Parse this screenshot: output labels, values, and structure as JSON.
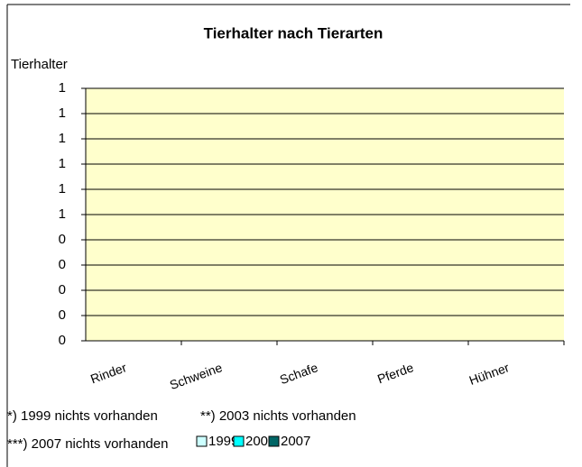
{
  "chart_data": {
    "type": "bar",
    "title": "Tierhalter nach Tierarten",
    "y_label": "Tierhalter",
    "categories": [
      "Rinder",
      "Schweine",
      "Schafe",
      "Pferde",
      "Hühner"
    ],
    "series": [
      {
        "name": "1999",
        "color": "#ccffff",
        "values": [
          0,
          0,
          0,
          0,
          0
        ]
      },
      {
        "name": "2003",
        "color": "#00ffff",
        "values": [
          0,
          0,
          0,
          0,
          0
        ]
      },
      {
        "name": "2007",
        "color": "#006666",
        "values": [
          0,
          0,
          0,
          0,
          0
        ]
      }
    ],
    "ylim": [
      0,
      1
    ],
    "yticks": [
      0,
      {
        "value": 0.1,
        "label": "0"
      },
      {
        "value": 0.2,
        "label": "0"
      },
      {
        "value": 0.3,
        "label": "0"
      },
      {
        "value": 0.4,
        "label": "0"
      },
      {
        "value": 0.5,
        "label": "1"
      },
      {
        "value": 0.6,
        "label": "1"
      },
      {
        "value": 0.7,
        "label": "1"
      },
      {
        "value": 0.8,
        "label": "1"
      },
      {
        "value": 0.9,
        "label": "1"
      },
      1
    ],
    "grid": true,
    "annotations": [
      "*) 1999 nichts vorhanden",
      "**) 2003 nichts vorhanden",
      "***) 2007 nichts vorhanden"
    ]
  }
}
